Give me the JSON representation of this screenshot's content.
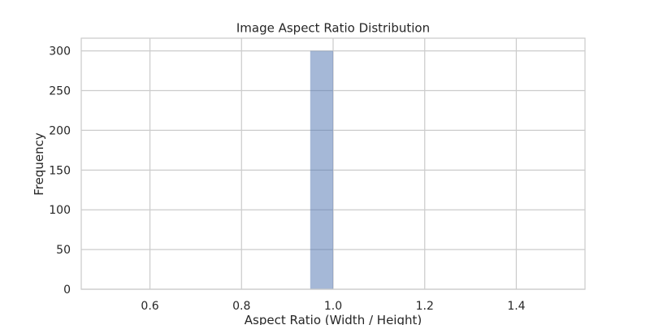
{
  "chart_data": {
    "type": "bar",
    "title": "Image Aspect Ratio Distribution",
    "xlabel": "Aspect Ratio (Width / Height)",
    "ylabel": "Frequency",
    "xlim": [
      0.45,
      1.55
    ],
    "ylim": [
      0,
      316
    ],
    "xticks": [
      0.6,
      0.8,
      1.0,
      1.2,
      1.4
    ],
    "yticks": [
      0,
      50,
      100,
      150,
      200,
      250,
      300
    ],
    "xtick_labels": [
      "0.6",
      "0.8",
      "1.0",
      "1.2",
      "1.4"
    ],
    "ytick_labels": [
      "0",
      "50",
      "100",
      "150",
      "200",
      "250",
      "300"
    ],
    "bins": [
      {
        "x0": 0.95,
        "x1": 1.0,
        "value": 300
      },
      {
        "x0": 1.0,
        "x1": 1.05,
        "value": 0
      }
    ],
    "grid": true,
    "colors": {
      "bar": "#4c72b0",
      "grid": "#cccccc",
      "frame": "#cccccc"
    },
    "bar_opacity": 0.5
  }
}
